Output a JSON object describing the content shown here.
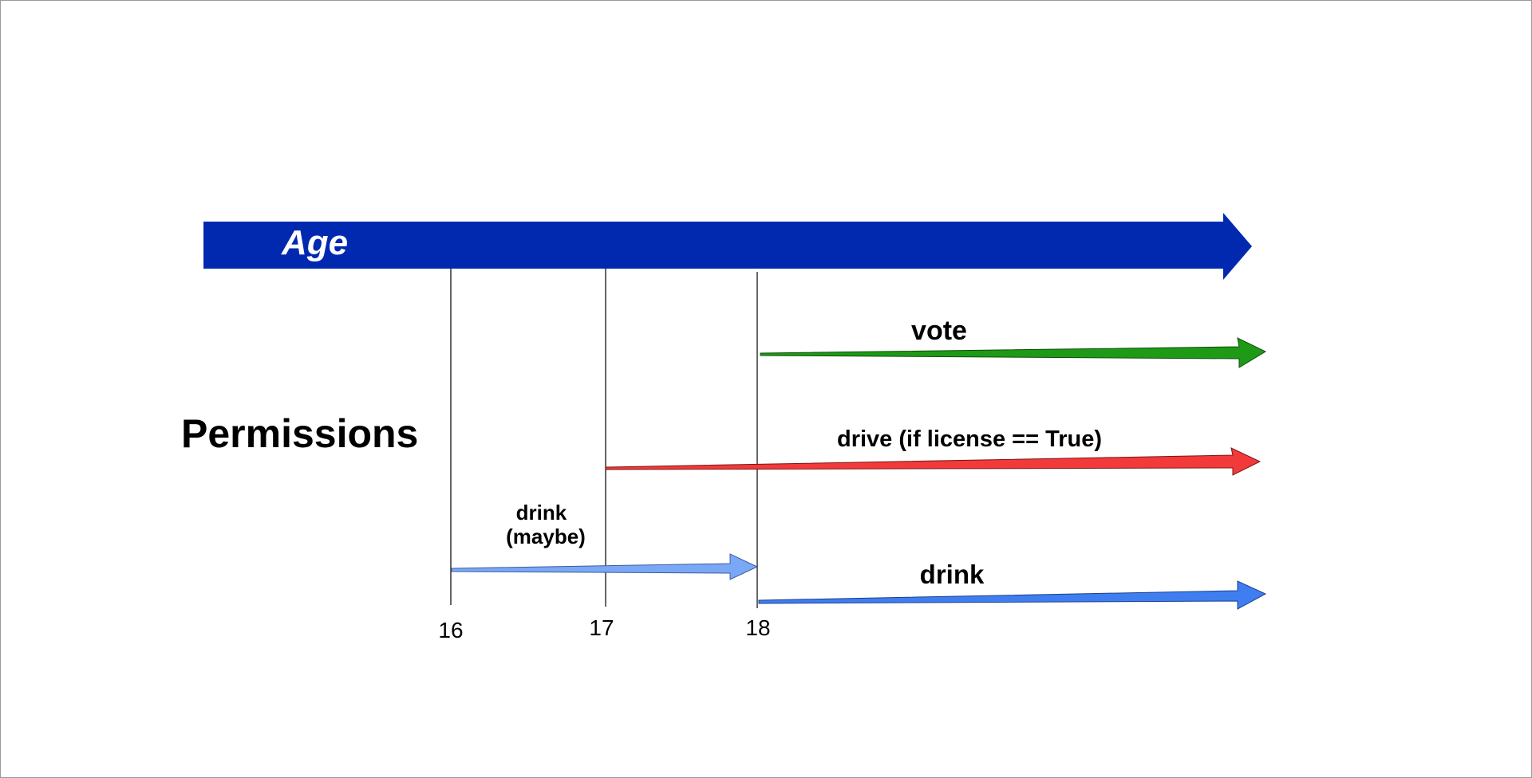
{
  "axis": {
    "label": "Age",
    "color": "#0029b0",
    "ticks": [
      {
        "value": 16,
        "label": "16"
      },
      {
        "value": 17,
        "label": "17"
      },
      {
        "value": 18,
        "label": "18"
      }
    ]
  },
  "section_title": "Permissions",
  "permissions": [
    {
      "label": "vote",
      "start_age": 18,
      "end": "open",
      "color": "#1e9a16"
    },
    {
      "label": "drive (if license == True)",
      "start_age": 17,
      "end": "open",
      "color": "#f23a3a"
    },
    {
      "label_lines": [
        "drink",
        "(maybe)"
      ],
      "start_age": 16,
      "end_age": 18,
      "color": "#7aa8f7"
    },
    {
      "label": "drink",
      "start_age": 18,
      "end": "open",
      "color": "#3f7ef0"
    }
  ]
}
